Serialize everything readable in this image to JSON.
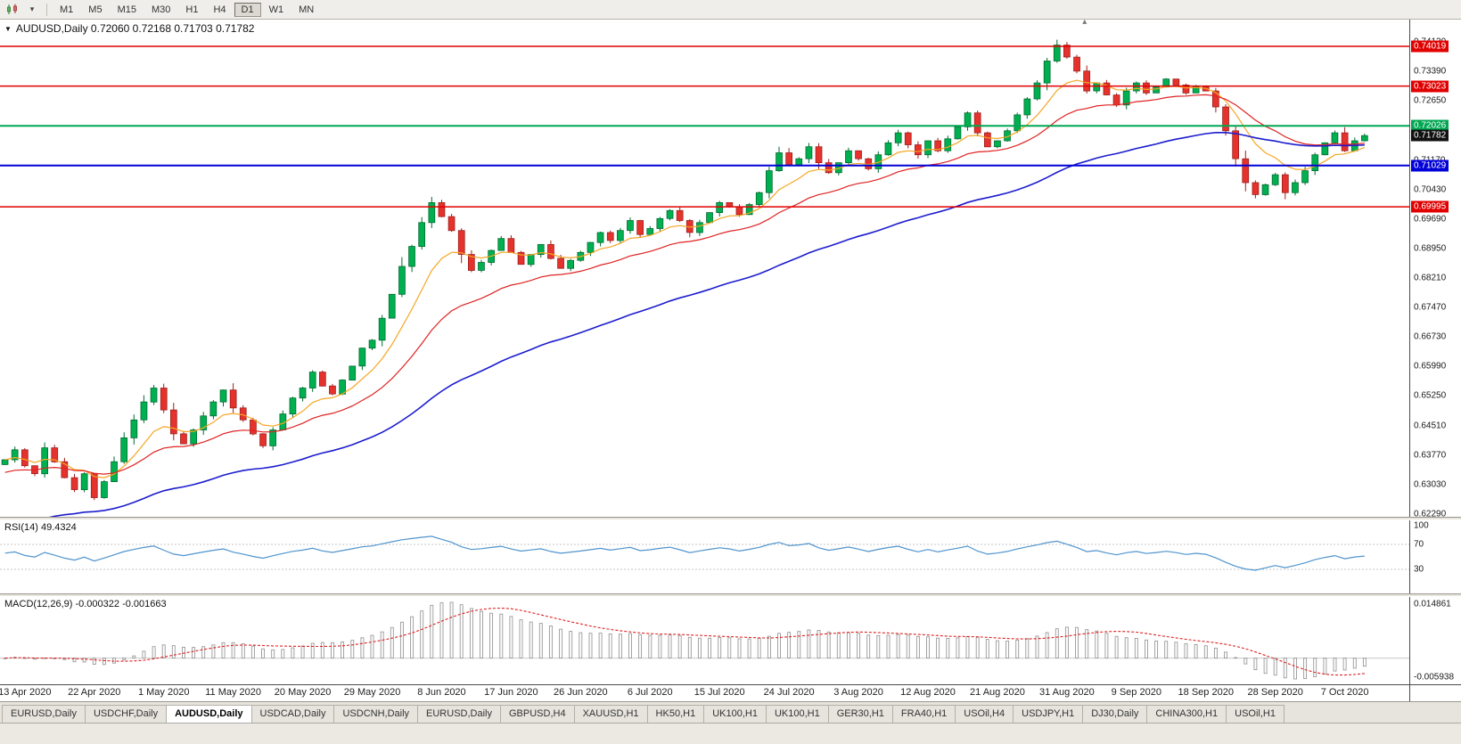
{
  "toolbar": {
    "icons": [
      {
        "name": "candlestick-chart-icon"
      },
      {
        "name": "dropdown-caret-icon",
        "glyph": "▾"
      }
    ],
    "timeframes": [
      "M1",
      "M5",
      "M15",
      "M30",
      "H1",
      "H4",
      "D1",
      "W1",
      "MN"
    ],
    "active_timeframe": "D1"
  },
  "chart": {
    "menu_icon_glyph": "▼",
    "title_full": "AUDUSD,Daily 0.72060 0.72168 0.71703 0.71782",
    "symbol": "AUDUSD",
    "period": "Daily",
    "open": "0.72060",
    "high": "0.72168",
    "low": "0.71703",
    "close": "0.71782",
    "shift_marker_glyph": "▴"
  },
  "price_axis": {
    "ticks": [
      "0.74130",
      "0.73390",
      "0.72650",
      "0.71170",
      "0.70430",
      "0.69690",
      "0.68950",
      "0.68210",
      "0.67470",
      "0.66730",
      "0.65990",
      "0.65250",
      "0.64510",
      "0.63770",
      "0.63030",
      "0.62290"
    ],
    "levels": [
      {
        "name": "resistance-badge-1",
        "value": "0.74019",
        "color": "#e00000",
        "line": true,
        "width": 1.5
      },
      {
        "name": "resistance-badge-2",
        "value": "0.73023",
        "color": "#e00000",
        "line": true,
        "width": 1.5
      },
      {
        "name": "pivot-badge-green",
        "value": "0.72026",
        "color": "#00a651",
        "line": true,
        "width": 2
      },
      {
        "name": "current-price-badge",
        "value": "0.71782",
        "color": "#111111",
        "line": false
      },
      {
        "name": "support-badge-blue",
        "value": "0.71029",
        "color": "#0000d8",
        "line": true,
        "width": 2
      },
      {
        "name": "support-badge-red",
        "value": "0.69995",
        "color": "#e00000",
        "line": true,
        "width": 1.5
      }
    ]
  },
  "rsi": {
    "label": "RSI(14) 49.4324",
    "axis_labels": [
      "100",
      "70",
      "30"
    ],
    "level_values": [
      100,
      70,
      30
    ],
    "line_color": "#4f94cd"
  },
  "macd": {
    "label": "MACD(12,26,9) -0.000322 -0.001663",
    "axis_top": "0.014861",
    "axis_bottom": "-0.005938",
    "signal_color": "#dd2222",
    "hist_color": "#999999"
  },
  "tabs": {
    "items": [
      "EURUSD,Daily",
      "USDCHF,Daily",
      "AUDUSD,Daily",
      "USDCAD,Daily",
      "USDCNH,Daily",
      "EURUSD,Daily",
      "GBPUSD,H4",
      "XAUUSD,H1",
      "HK50,H1",
      "UK100,H1",
      "UK100,H1",
      "GER30,H1",
      "FRA40,H1",
      "USOil,H4",
      "USDJPY,H1",
      "DJ30,Daily",
      "CHINA300,H1",
      "USOil,H1"
    ],
    "active_index": 2
  },
  "chart_data": {
    "type": "candlestick",
    "symbol": "AUDUSD",
    "timeframe": "Daily",
    "current_ohlc": {
      "open": 0.7206,
      "high": 0.72168,
      "low": 0.71703,
      "close": 0.71782
    },
    "y_range": [
      0.6222,
      0.7469
    ],
    "right_padding_candles": 4,
    "closes": [
      0.6365,
      0.639,
      0.635,
      0.633,
      0.6395,
      0.636,
      0.632,
      0.629,
      0.633,
      0.627,
      0.631,
      0.636,
      0.642,
      0.6465,
      0.651,
      0.6545,
      0.649,
      0.643,
      0.6405,
      0.644,
      0.6475,
      0.651,
      0.654,
      0.6495,
      0.6465,
      0.643,
      0.64,
      0.644,
      0.648,
      0.652,
      0.6545,
      0.6585,
      0.655,
      0.653,
      0.6565,
      0.66,
      0.6645,
      0.6665,
      0.672,
      0.678,
      0.685,
      0.69,
      0.696,
      0.701,
      0.6975,
      0.694,
      0.688,
      0.684,
      0.686,
      0.689,
      0.692,
      0.6885,
      0.6855,
      0.688,
      0.6905,
      0.687,
      0.6845,
      0.6865,
      0.6885,
      0.691,
      0.6935,
      0.6915,
      0.694,
      0.6965,
      0.693,
      0.6945,
      0.697,
      0.699,
      0.6965,
      0.6935,
      0.696,
      0.6985,
      0.701,
      0.7,
      0.698,
      0.7005,
      0.7035,
      0.709,
      0.7135,
      0.7105,
      0.712,
      0.715,
      0.711,
      0.7085,
      0.711,
      0.714,
      0.712,
      0.7095,
      0.713,
      0.716,
      0.7185,
      0.7155,
      0.713,
      0.7165,
      0.714,
      0.717,
      0.72,
      0.7235,
      0.7185,
      0.715,
      0.7165,
      0.719,
      0.723,
      0.727,
      0.731,
      0.7365,
      0.7405,
      0.7375,
      0.734,
      0.729,
      0.731,
      0.728,
      0.7255,
      0.729,
      0.731,
      0.7285,
      0.73,
      0.732,
      0.7305,
      0.7285,
      0.73,
      0.729,
      0.725,
      0.719,
      0.712,
      0.706,
      0.703,
      0.7055,
      0.708,
      0.7035,
      0.706,
      0.709,
      0.713,
      0.716,
      0.7185,
      0.714,
      0.7165,
      0.7178
    ],
    "date_ticks": [
      "13 Apr 2020",
      "22 Apr 2020",
      "1 May 2020",
      "11 May 2020",
      "20 May 2020",
      "29 May 2020",
      "8 Jun 2020",
      "17 Jun 2020",
      "26 Jun 2020",
      "6 Jul 2020",
      "15 Jul 2020",
      "24 Jul 2020",
      "3 Aug 2020",
      "12 Aug 2020",
      "21 Aug 2020",
      "31 Aug 2020",
      "9 Sep 2020",
      "18 Sep 2020",
      "28 Sep 2020",
      "7 Oct 2020"
    ],
    "date_tick_indices": [
      2,
      9,
      16,
      23,
      30,
      37,
      44,
      51,
      58,
      65,
      72,
      79,
      86,
      93,
      100,
      107,
      114,
      121,
      128,
      135
    ],
    "horizontal_levels": [
      0.74019,
      0.73023,
      0.72026,
      0.71029,
      0.69995
    ],
    "moving_averages": [
      {
        "name": "fast",
        "period": 8,
        "color": "#f5a623"
      },
      {
        "name": "medium",
        "period": 20,
        "color": "#e02121"
      },
      {
        "name": "slow",
        "period": 50,
        "color": "#1c1ccf"
      }
    ],
    "colors": {
      "up": "#00b050",
      "up_border": "#006b30",
      "down": "#e5322d",
      "down_border": "#9c1f1c"
    },
    "indicators": {
      "rsi": {
        "period": 14,
        "current": 49.4324,
        "levels": [
          70,
          30
        ]
      },
      "macd": {
        "fast": 12,
        "slow": 26,
        "signal": 9,
        "current_main": -0.000322,
        "current_signal": -0.001663
      }
    }
  }
}
